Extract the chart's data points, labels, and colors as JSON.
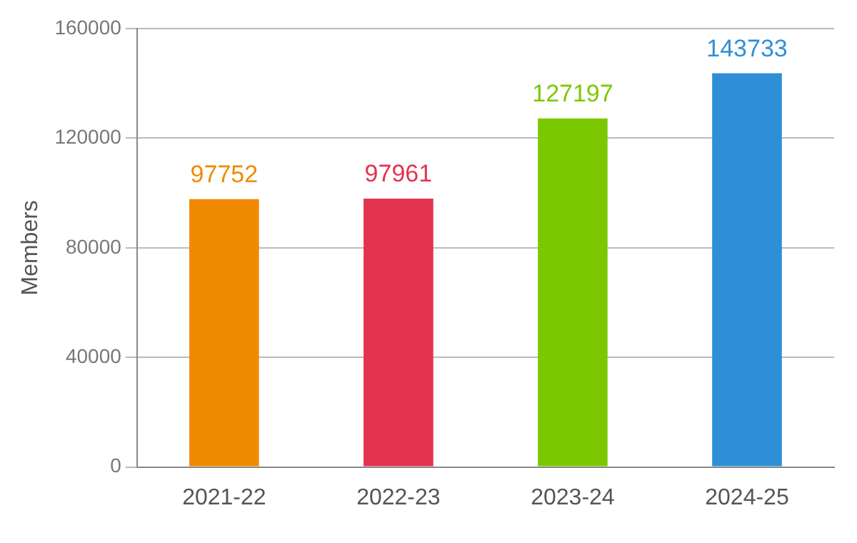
{
  "chart_data": {
    "type": "bar",
    "ylabel": "Members",
    "categories": [
      "2021-22",
      "2022-23",
      "2023-24",
      "2024-25"
    ],
    "values": [
      97752,
      97961,
      127197,
      143733
    ],
    "colors": [
      "#f08a00",
      "#e2334f",
      "#7cc800",
      "#2f8fd6"
    ],
    "ylim": [
      0,
      160000
    ],
    "yticks": [
      0,
      40000,
      80000,
      120000,
      160000
    ],
    "grid": "y",
    "legend": false,
    "data_labels": true
  }
}
